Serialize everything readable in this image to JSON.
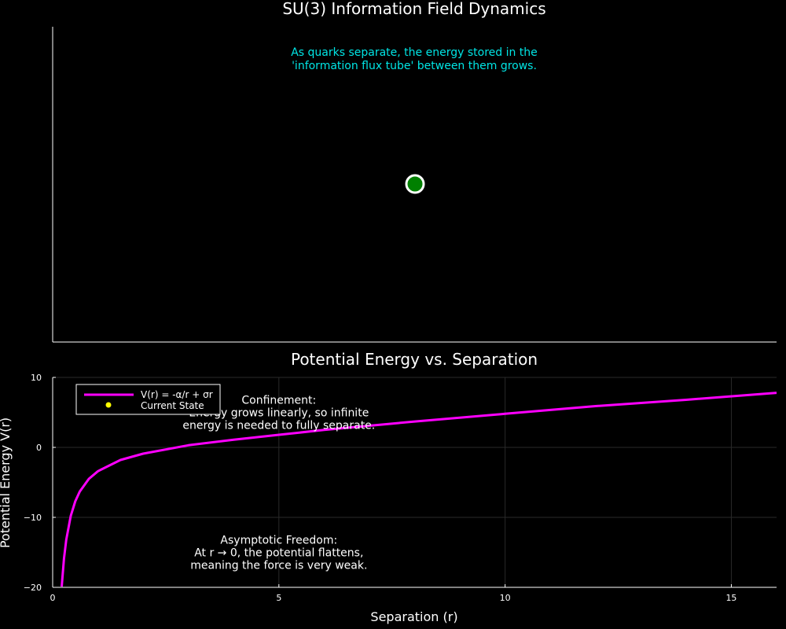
{
  "top_panel": {
    "title": "SU(3) Information Field Dynamics",
    "caption_lines": [
      "As quarks separate, the energy stored in the",
      "'information flux tube' between them grows."
    ],
    "marker_color": "#008000",
    "marker_edge_color": "#ffffff",
    "caption_color": "#00e5e5"
  },
  "chart_data": {
    "type": "line",
    "title": "Potential Energy vs. Separation",
    "xlabel": "Separation (r)",
    "ylabel": "Potential Energy V(r)",
    "xlim": [
      0,
      16
    ],
    "ylim": [
      -20,
      10
    ],
    "xticks": [
      0,
      5,
      10,
      15
    ],
    "yticks": [
      -20,
      -10,
      0,
      10
    ],
    "grid": true,
    "legend_position": "top-left",
    "series": [
      {
        "name": "V(r) = -α/r + σr",
        "color": "#ff00ff",
        "x": [
          0.2,
          0.25,
          0.3,
          0.4,
          0.5,
          0.6,
          0.8,
          1.0,
          1.5,
          2.0,
          3.0,
          4.0,
          5.0,
          6.0,
          8.0,
          10.0,
          12.0,
          14.0,
          16.0
        ],
        "y": [
          -19.9,
          -15.9,
          -13.2,
          -9.8,
          -7.7,
          -6.3,
          -4.5,
          -3.4,
          -1.8,
          -0.9,
          0.3,
          1.1,
          1.8,
          2.5,
          3.7,
          4.8,
          5.9,
          6.8,
          7.8
        ]
      }
    ],
    "current_state": {
      "name": "Current State",
      "color": "#ffff00"
    },
    "annotations": [
      {
        "lines": [
          "Confinement:",
          "Energy grows linearly, so infinite",
          "energy is needed to fully separate."
        ],
        "x": 5.0,
        "y": 5.0
      },
      {
        "lines": [
          "Asymptotic Freedom:",
          "At r → 0, the potential flattens,",
          "meaning the force is very weak."
        ],
        "x": 5.0,
        "y": -15.0
      }
    ]
  }
}
